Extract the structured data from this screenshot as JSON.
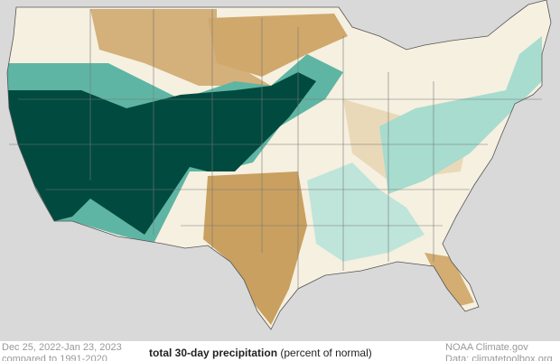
{
  "map": {
    "date_range": "Dec 25, 2022-Jan 23, 2023",
    "baseline": "compared to 1991-2020",
    "title": "total 30-day precipitation",
    "units": "(percent of normal)",
    "credit": "NOAA Climate.gov",
    "source": "Data: climatetoolbox.org"
  }
}
